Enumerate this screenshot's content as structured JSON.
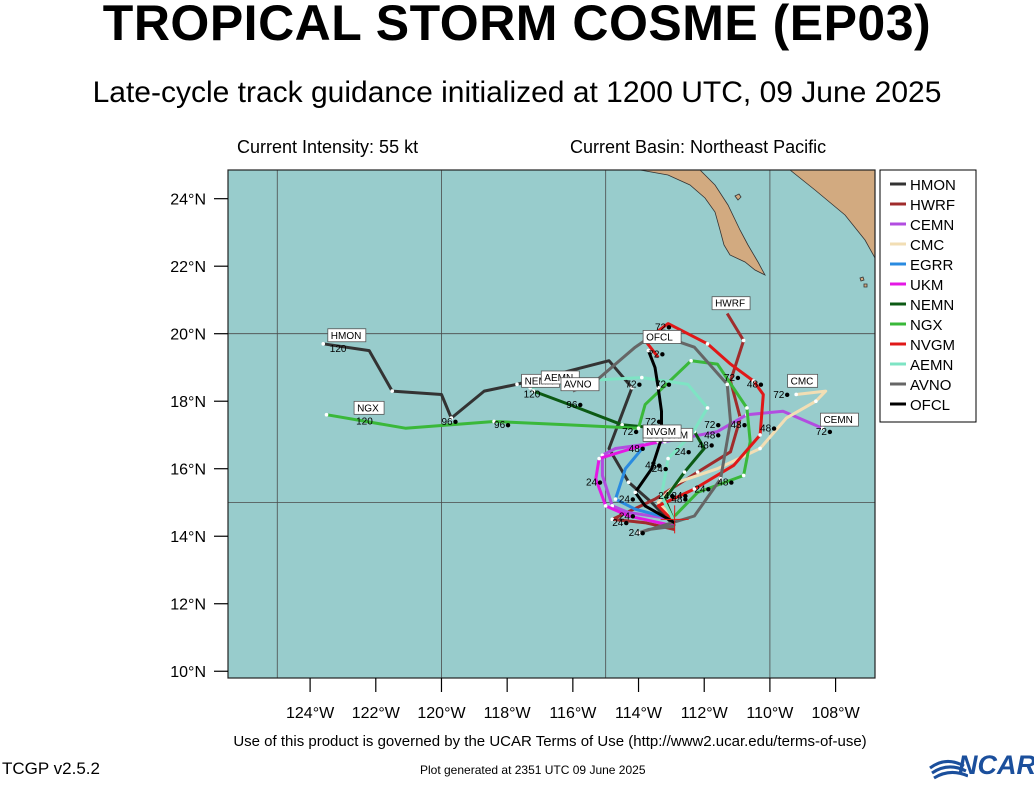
{
  "header": {
    "title": "TROPICAL STORM COSME (EP03)",
    "subtitle": "Late-cycle track guidance initialized at 1200 UTC, 09 June 2025",
    "intensity": "Current Intensity: 55 kt",
    "basin": "Current Basin: Northeast Pacific"
  },
  "map": {
    "lon_range": [
      -126.5,
      -106.8
    ],
    "lat_range": [
      9.8,
      24.85
    ],
    "lat_ticks": [
      {
        "value": 10,
        "label": "10°N"
      },
      {
        "value": 12,
        "label": "12°N"
      },
      {
        "value": 14,
        "label": "14°N"
      },
      {
        "value": 16,
        "label": "16°N"
      },
      {
        "value": 18,
        "label": "18°N"
      },
      {
        "value": 20,
        "label": "20°N"
      },
      {
        "value": 22,
        "label": "22°N"
      },
      {
        "value": 24,
        "label": "24°N"
      }
    ],
    "lon_ticks": [
      {
        "value": -124,
        "label": "124°W"
      },
      {
        "value": -122,
        "label": "122°W"
      },
      {
        "value": -120,
        "label": "120°W"
      },
      {
        "value": -118,
        "label": "118°W"
      },
      {
        "value": -116,
        "label": "116°W"
      },
      {
        "value": -114,
        "label": "114°W"
      },
      {
        "value": -112,
        "label": "112°W"
      },
      {
        "value": -110,
        "label": "110°W"
      },
      {
        "value": -108,
        "label": "108°W"
      }
    ],
    "gridlines": {
      "lon": [
        -125,
        -120,
        -115,
        -110
      ],
      "lat": [
        15,
        20
      ]
    },
    "colors": {
      "ocean": "#98cccc",
      "land": "#d2aa80",
      "grid": "#4a4a4a"
    },
    "storm_position": [
      -112.9,
      14.5
    ],
    "land_label": "land"
  },
  "legend": [
    {
      "name": "HMON",
      "color": "#333333"
    },
    {
      "name": "HWRF",
      "color": "#a02c2c"
    },
    {
      "name": "CEMN",
      "color": "#b24de0"
    },
    {
      "name": "CMC",
      "color": "#f2deb4"
    },
    {
      "name": "EGRR",
      "color": "#2a8be0"
    },
    {
      "name": "UKM",
      "color": "#e418e4"
    },
    {
      "name": "NEMN",
      "color": "#0c5a14"
    },
    {
      "name": "NGX",
      "color": "#3ab83a"
    },
    {
      "name": "NVGM",
      "color": "#e01818"
    },
    {
      "name": "AEMN",
      "color": "#7ee4c4"
    },
    {
      "name": "AVNO",
      "color": "#666666"
    },
    {
      "name": "OFCL",
      "color": "#000000"
    }
  ],
  "tracks": [
    {
      "name": "HMON",
      "label": "HMON",
      "label_pos": [
        -123.4,
        19.85
      ],
      "end_hour": "120",
      "points": [
        [
          -112.9,
          14.3
        ],
        [
          -113.6,
          15.0
        ],
        [
          -114.3,
          15.6
        ],
        [
          -114.9,
          16.6
        ],
        [
          -114.2,
          18.4
        ],
        [
          -114.9,
          19.2
        ],
        [
          -117.7,
          18.5
        ],
        [
          -118.7,
          18.3
        ],
        [
          -119.7,
          17.5
        ],
        [
          -120.0,
          18.2
        ],
        [
          -121.5,
          18.3
        ],
        [
          -122.2,
          19.5
        ],
        [
          -123.6,
          19.7
        ]
      ]
    },
    {
      "name": "HWRF",
      "label": "HWRF",
      "label_pos": [
        -111.7,
        20.8
      ],
      "points": [
        [
          -112.9,
          14.2
        ],
        [
          -113.8,
          14.4
        ],
        [
          -114.8,
          14.5
        ],
        [
          -113.5,
          15.1
        ],
        [
          -112.2,
          15.9
        ],
        [
          -111.2,
          16.5
        ],
        [
          -110.9,
          17.5
        ],
        [
          -111.2,
          18.6
        ],
        [
          -110.8,
          19.8
        ],
        [
          -111.3,
          20.6
        ]
      ]
    },
    {
      "name": "CEMN",
      "label": "CEMN",
      "label_pos": [
        -108.4,
        17.35
      ],
      "points": [
        [
          -112.9,
          14.5
        ],
        [
          -114.3,
          14.7
        ],
        [
          -114.8,
          14.9
        ],
        [
          -115.1,
          15.8
        ],
        [
          -115.1,
          16.4
        ],
        [
          -114.7,
          16.6
        ],
        [
          -113.2,
          16.8
        ],
        [
          -111.6,
          17.1
        ],
        [
          -110.7,
          17.6
        ],
        [
          -109.6,
          17.7
        ],
        [
          -108.4,
          17.2
        ]
      ]
    },
    {
      "name": "CMC",
      "label": "CMC",
      "label_pos": [
        -109.4,
        18.5
      ],
      "points": [
        [
          -112.9,
          14.5
        ],
        [
          -113.4,
          15.0
        ],
        [
          -112.8,
          15.6
        ],
        [
          -111.6,
          16.0
        ],
        [
          -110.3,
          16.6
        ],
        [
          -109.5,
          17.5
        ],
        [
          -108.6,
          18.0
        ],
        [
          -108.3,
          18.3
        ],
        [
          -109.2,
          18.2
        ]
      ]
    },
    {
      "name": "EGRR",
      "label": "EGRR",
      "label_pos": [
        -113.8,
        16.9
      ],
      "points": [
        [
          -112.9,
          14.5
        ],
        [
          -114.1,
          14.8
        ],
        [
          -114.7,
          15.1
        ],
        [
          -114.4,
          16.0
        ],
        [
          -113.8,
          16.7
        ]
      ]
    },
    {
      "name": "UKM",
      "label": "UKM",
      "label_pos": [
        -113.2,
        16.9
      ],
      "points": [
        [
          -112.9,
          14.3
        ],
        [
          -114.3,
          14.6
        ],
        [
          -115.0,
          14.9
        ],
        [
          -115.3,
          15.7
        ],
        [
          -115.2,
          16.3
        ],
        [
          -114.2,
          16.6
        ],
        [
          -113.4,
          16.8
        ]
      ]
    },
    {
      "name": "NEMN",
      "label": "NEMN",
      "label_pos": [
        -117.5,
        18.5
      ],
      "end_hour": "120",
      "points": [
        [
          -112.9,
          14.4
        ],
        [
          -113.2,
          15.1
        ],
        [
          -112.6,
          15.9
        ],
        [
          -112.0,
          16.6
        ],
        [
          -112.3,
          17.1
        ],
        [
          -113.4,
          17.2
        ],
        [
          -114.5,
          17.3
        ],
        [
          -116.1,
          17.9
        ],
        [
          -117.2,
          18.3
        ]
      ]
    },
    {
      "name": "NGX",
      "label": "NGX",
      "label_pos": [
        -122.6,
        17.7
      ],
      "end_hour": "120",
      "points": [
        [
          -112.9,
          14.6
        ],
        [
          -112.2,
          15.3
        ],
        [
          -110.8,
          15.8
        ],
        [
          -110.6,
          16.8
        ],
        [
          -110.7,
          17.8
        ],
        [
          -111.6,
          19.1
        ],
        [
          -112.4,
          19.2
        ],
        [
          -113.8,
          17.9
        ],
        [
          -114.0,
          17.2
        ],
        [
          -116.2,
          17.3
        ],
        [
          -118.4,
          17.4
        ],
        [
          -121.1,
          17.2
        ],
        [
          -123.5,
          17.6
        ]
      ]
    },
    {
      "name": "NVGM",
      "label": "NVGM",
      "label_pos": [
        -113.8,
        17.0
      ],
      "points": [
        [
          -112.9,
          14.4
        ],
        [
          -113.4,
          14.9
        ],
        [
          -112.3,
          15.4
        ],
        [
          -111.1,
          16.1
        ],
        [
          -110.3,
          17.0
        ],
        [
          -110.2,
          18.2
        ],
        [
          -110.5,
          18.6
        ],
        [
          -111.2,
          19.1
        ],
        [
          -111.9,
          19.7
        ],
        [
          -113.1,
          20.3
        ],
        [
          -113.8,
          19.8
        ],
        [
          -113.4,
          19.3
        ]
      ]
    },
    {
      "name": "AEMN",
      "label": "AEMN",
      "label_pos": [
        -116.9,
        18.6
      ],
      "points": [
        [
          -112.9,
          14.4
        ],
        [
          -113.3,
          15.2
        ],
        [
          -113.1,
          16.3
        ],
        [
          -112.4,
          17.0
        ],
        [
          -111.9,
          17.8
        ],
        [
          -112.5,
          18.5
        ],
        [
          -113.9,
          18.7
        ],
        [
          -115.9,
          18.6
        ],
        [
          -117.3,
          18.4
        ]
      ]
    },
    {
      "name": "AVNO",
      "label": "AVNO",
      "label_pos": [
        -116.3,
        18.4
      ],
      "points": [
        [
          -112.9,
          14.3
        ],
        [
          -113.7,
          14.2
        ],
        [
          -114.0,
          14.1
        ],
        [
          -112.3,
          14.6
        ],
        [
          -111.5,
          15.7
        ],
        [
          -111.2,
          17.4
        ],
        [
          -111.3,
          18.5
        ],
        [
          -112.3,
          19.6
        ],
        [
          -113.5,
          20.0
        ],
        [
          -114.1,
          19.6
        ],
        [
          -115.3,
          18.6
        ],
        [
          -116.0,
          18.3
        ]
      ]
    },
    {
      "name": "OFCL",
      "label": "OFCL",
      "label_pos": [
        -113.8,
        19.8
      ],
      "points": [
        [
          -112.9,
          14.4
        ],
        [
          -113.8,
          14.9
        ],
        [
          -114.1,
          15.3
        ],
        [
          -113.6,
          16.0
        ],
        [
          -113.3,
          16.9
        ],
        [
          -113.3,
          17.7
        ],
        [
          -113.4,
          18.4
        ],
        [
          -113.5,
          19.0
        ],
        [
          -113.7,
          19.5
        ]
      ]
    }
  ],
  "hour_labels": [
    {
      "text": "24",
      "pos": [
        -115.6,
        15.5
      ]
    },
    {
      "text": "24",
      "pos": [
        -114.6,
        15.0
      ]
    },
    {
      "text": "24",
      "pos": [
        -114.8,
        14.3
      ]
    },
    {
      "text": "24",
      "pos": [
        -114.3,
        14.0
      ]
    },
    {
      "text": "24",
      "pos": [
        -114.6,
        14.5
      ]
    },
    {
      "text": "24",
      "pos": [
        -113.4,
        15.1
      ]
    },
    {
      "text": "24",
      "pos": [
        -113.6,
        15.9
      ]
    },
    {
      "text": "24",
      "pos": [
        -112.9,
        16.4
      ]
    },
    {
      "text": "24",
      "pos": [
        -112.3,
        15.3
      ]
    },
    {
      "text": "24",
      "pos": [
        -113.0,
        15.1
      ]
    },
    {
      "text": "48",
      "pos": [
        -114.3,
        16.5
      ]
    },
    {
      "text": "48",
      "pos": [
        -113.8,
        16.0
      ]
    },
    {
      "text": "48",
      "pos": [
        -112.2,
        16.6
      ]
    },
    {
      "text": "48",
      "pos": [
        -112.0,
        16.9
      ]
    },
    {
      "text": "48",
      "pos": [
        -111.2,
        17.2
      ]
    },
    {
      "text": "48",
      "pos": [
        -110.7,
        18.4
      ]
    },
    {
      "text": "48",
      "pos": [
        -110.3,
        17.1
      ]
    },
    {
      "text": "48",
      "pos": [
        -111.6,
        15.5
      ]
    },
    {
      "text": "48",
      "pos": [
        -113.0,
        15.0
      ]
    },
    {
      "text": "72",
      "pos": [
        -114.4,
        18.4
      ]
    },
    {
      "text": "72",
      "pos": [
        -113.5,
        18.4
      ]
    },
    {
      "text": "72",
      "pos": [
        -114.5,
        17.0
      ]
    },
    {
      "text": "72",
      "pos": [
        -113.8,
        17.3
      ]
    },
    {
      "text": "72",
      "pos": [
        -112.0,
        17.2
      ]
    },
    {
      "text": "72",
      "pos": [
        -111.4,
        18.6
      ]
    },
    {
      "text": "72",
      "pos": [
        -109.9,
        18.1
      ]
    },
    {
      "text": "72",
      "pos": [
        -108.6,
        17.0
      ]
    },
    {
      "text": "72",
      "pos": [
        -113.5,
        20.1
      ]
    },
    {
      "text": "72",
      "pos": [
        -113.7,
        19.3
      ]
    },
    {
      "text": "96",
      "pos": [
        -120.0,
        17.3
      ]
    },
    {
      "text": "96",
      "pos": [
        -118.4,
        17.2
      ]
    },
    {
      "text": "96",
      "pos": [
        -116.2,
        17.8
      ]
    }
  ],
  "footer": {
    "terms": "Use of this product is governed by the UCAR Terms of Use (http://www2.ucar.edu/terms-of-use)",
    "version": "TCGP v2.5.2",
    "generated": "Plot generated at 2351 UTC   09 June 2025",
    "logo_text": "NCAR"
  }
}
